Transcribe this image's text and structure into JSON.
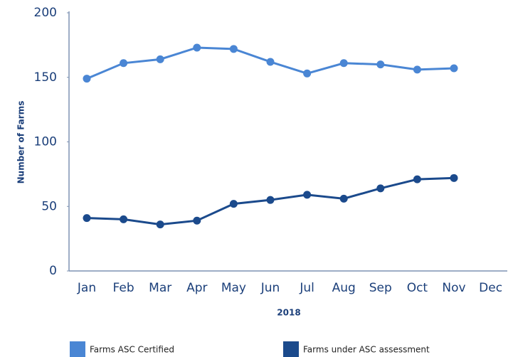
{
  "chart_data": {
    "type": "line",
    "categories": [
      "Jan",
      "Feb",
      "Mar",
      "Apr",
      "May",
      "Jun",
      "Jul",
      "Aug",
      "Sep",
      "Oct",
      "Nov",
      "Dec"
    ],
    "series": [
      {
        "name": "Farms ASC Certified",
        "color": "#4a86d4",
        "values": [
          149,
          161,
          164,
          173,
          172,
          162,
          153,
          161,
          160,
          156,
          157,
          null
        ]
      },
      {
        "name": "Farms under ASC assessment",
        "color": "#1b4a8c",
        "values": [
          41,
          40,
          36,
          39,
          52,
          55,
          59,
          56,
          64,
          71,
          72,
          null
        ]
      }
    ],
    "x_label": "2018",
    "y_label": "Number of Farms",
    "ylim": [
      0,
      200
    ],
    "yticks": [
      0,
      50,
      100,
      150,
      200
    ],
    "grid": false,
    "legend": "bottom"
  }
}
